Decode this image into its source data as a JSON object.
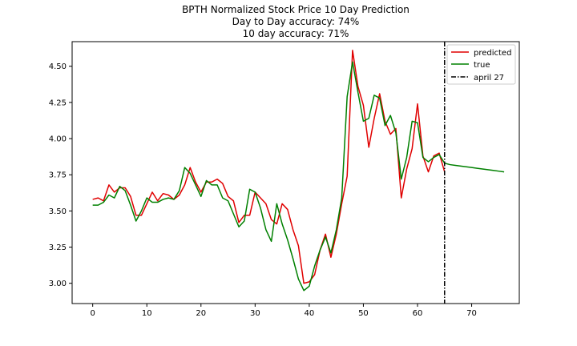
{
  "chart_data": {
    "type": "line",
    "title": "BPTH Normalized Stock Price 10 Day Prediction",
    "subtitle_lines": [
      "Day to Day accuracy: 74%",
      "10 day accuracy: 71%"
    ],
    "xlabel": "",
    "ylabel": "",
    "xlim": [
      -3.8,
      78.8
    ],
    "ylim": [
      2.86,
      4.67
    ],
    "x_ticks": [
      0,
      10,
      20,
      30,
      40,
      50,
      60,
      70
    ],
    "y_ticks": [
      3.0,
      3.25,
      3.5,
      3.75,
      4.0,
      4.25,
      4.5
    ],
    "y_tick_labels": [
      "3.00",
      "3.25",
      "3.50",
      "3.75",
      "4.00",
      "4.25",
      "4.50"
    ],
    "grid": false,
    "legend_position": "top-right",
    "series": [
      {
        "name": "predicted",
        "color": "#e00000",
        "x_start": 0,
        "values": [
          3.58,
          3.59,
          3.57,
          3.68,
          3.63,
          3.66,
          3.66,
          3.6,
          3.47,
          3.47,
          3.55,
          3.63,
          3.57,
          3.62,
          3.61,
          3.58,
          3.61,
          3.68,
          3.8,
          3.7,
          3.63,
          3.7,
          3.7,
          3.72,
          3.69,
          3.6,
          3.57,
          3.42,
          3.47,
          3.47,
          3.63,
          3.59,
          3.55,
          3.44,
          3.41,
          3.55,
          3.51,
          3.37,
          3.26,
          3.0,
          3.01,
          3.06,
          3.23,
          3.34,
          3.18,
          3.34,
          3.55,
          3.74,
          4.61,
          4.36,
          4.23,
          3.94,
          4.14,
          4.31,
          4.12,
          4.03,
          4.07,
          3.59,
          3.79,
          3.93,
          4.24,
          3.88,
          3.77,
          3.88,
          3.9,
          3.77
        ]
      },
      {
        "name": "true",
        "color": "#008000",
        "x_start": 0,
        "values": [
          3.54,
          3.54,
          3.56,
          3.61,
          3.59,
          3.67,
          3.64,
          3.54,
          3.43,
          3.5,
          3.59,
          3.56,
          3.56,
          3.58,
          3.59,
          3.58,
          3.64,
          3.8,
          3.76,
          3.68,
          3.6,
          3.71,
          3.68,
          3.68,
          3.59,
          3.57,
          3.48,
          3.39,
          3.43,
          3.65,
          3.63,
          3.52,
          3.37,
          3.29,
          3.55,
          3.41,
          3.3,
          3.17,
          3.03,
          2.95,
          2.98,
          3.12,
          3.23,
          3.32,
          3.21,
          3.37,
          3.59,
          4.29,
          4.53,
          4.32,
          4.12,
          4.14,
          4.3,
          4.28,
          4.09,
          4.16,
          4.04,
          3.72,
          3.87,
          4.12,
          4.11,
          3.87,
          3.84,
          3.87,
          3.89,
          3.83,
          3.82,
          3.815,
          3.81,
          3.805,
          3.8,
          3.795,
          3.79,
          3.785,
          3.78,
          3.775,
          3.77
        ]
      },
      {
        "name": "april 27",
        "color": "#000000",
        "style": "dash-dot",
        "vertical_x": 65
      }
    ]
  }
}
